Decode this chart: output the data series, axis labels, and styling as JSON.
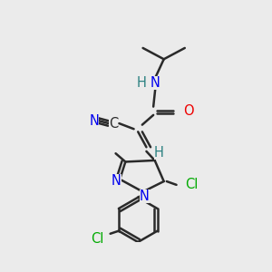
{
  "bg_color": "#ebebeb",
  "bond_color": "#2a2a2a",
  "bond_width": 1.8,
  "atom_colors": {
    "C": "#2a2a2a",
    "N": "#0000ee",
    "O": "#ee0000",
    "Cl": "#00aa00",
    "H": "#2a8080"
  },
  "font_size": 10.5
}
